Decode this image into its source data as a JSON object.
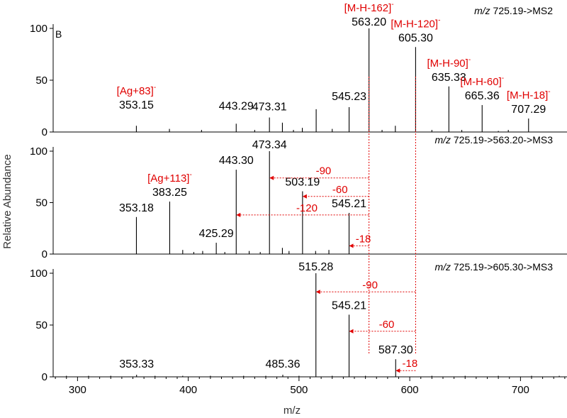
{
  "figure": {
    "panel_letter": "B",
    "ylabel": "Relative Abundance",
    "xlabel": "m/z",
    "xlim": [
      278,
      742
    ],
    "xticks": [
      300,
      400,
      500,
      600,
      700
    ],
    "yticks": [
      0,
      50,
      100
    ],
    "colors": {
      "peaks": "#000000",
      "annotation": "#e00000",
      "baseline": "#000000"
    }
  },
  "chart_data": [
    {
      "type": "bar",
      "title": "m/z 725.19->MS2",
      "title_italic": "m/z",
      "title_rest": " 725.19->MS2",
      "ylim": [
        0,
        100
      ],
      "peaks": [
        {
          "x": 353.15,
          "y": 6
        },
        {
          "x": 383.0,
          "y": 3
        },
        {
          "x": 412.0,
          "y": 2
        },
        {
          "x": 443.29,
          "y": 8
        },
        {
          "x": 473.31,
          "y": 14
        },
        {
          "x": 485.0,
          "y": 9
        },
        {
          "x": 503.0,
          "y": 4
        },
        {
          "x": 515.5,
          "y": 22
        },
        {
          "x": 530.0,
          "y": 3
        },
        {
          "x": 545.23,
          "y": 24
        },
        {
          "x": 563.2,
          "y": 100
        },
        {
          "x": 587.0,
          "y": 6
        },
        {
          "x": 605.3,
          "y": 82
        },
        {
          "x": 635.33,
          "y": 44
        },
        {
          "x": 647.0,
          "y": 2
        },
        {
          "x": 665.36,
          "y": 26
        },
        {
          "x": 689.0,
          "y": 2
        },
        {
          "x": 707.29,
          "y": 13
        },
        {
          "x": 460.0,
          "y": 2
        },
        {
          "x": 495.0,
          "y": 2
        },
        {
          "x": 575.0,
          "y": 2
        },
        {
          "x": 620.0,
          "y": 2
        },
        {
          "x": 680.0,
          "y": 1
        }
      ],
      "peak_labels": [
        {
          "x": 353.15,
          "text": "353.15"
        },
        {
          "x": 443.29,
          "text": "443.29"
        },
        {
          "x": 473.31,
          "text": "473.31"
        },
        {
          "x": 545.23,
          "text": "545.23"
        },
        {
          "x": 563.2,
          "text": "563.20"
        },
        {
          "x": 605.3,
          "text": "605.30"
        },
        {
          "x": 635.33,
          "text": "635.33"
        },
        {
          "x": 665.36,
          "text": "665.36"
        },
        {
          "x": 707.29,
          "text": "707.29"
        }
      ],
      "ion_labels": [
        {
          "x": 563.2,
          "main": "[M-H-162]",
          "sup": "-"
        },
        {
          "x": 605.3,
          "main": "[M-H-120]",
          "sup": "-"
        },
        {
          "x": 635.33,
          "main": "[M-H-90]",
          "sup": "-"
        },
        {
          "x": 665.36,
          "main": "[M-H-60]",
          "sup": "-"
        },
        {
          "x": 707.29,
          "main": "[M-H-18]",
          "sup": "-"
        },
        {
          "x": 353.15,
          "main": "[Ag+83]",
          "sup": "-"
        }
      ],
      "losses": []
    },
    {
      "type": "bar",
      "title": "m/z 725.19->563.20->MS3",
      "title_italic": "m/z",
      "title_rest": " 725.19->563.20->MS3",
      "ylim": [
        0,
        100
      ],
      "peaks": [
        {
          "x": 353.18,
          "y": 36
        },
        {
          "x": 383.25,
          "y": 51
        },
        {
          "x": 395.0,
          "y": 4
        },
        {
          "x": 413.0,
          "y": 3
        },
        {
          "x": 425.29,
          "y": 11
        },
        {
          "x": 443.3,
          "y": 82
        },
        {
          "x": 455.0,
          "y": 3
        },
        {
          "x": 473.34,
          "y": 100
        },
        {
          "x": 485.0,
          "y": 6
        },
        {
          "x": 503.19,
          "y": 61
        },
        {
          "x": 515.0,
          "y": 3
        },
        {
          "x": 527.0,
          "y": 4
        },
        {
          "x": 545.21,
          "y": 40
        },
        {
          "x": 433.0,
          "y": 2
        },
        {
          "x": 465.0,
          "y": 2
        },
        {
          "x": 405.0,
          "y": 2
        },
        {
          "x": 491.0,
          "y": 3
        }
      ],
      "peak_labels": [
        {
          "x": 353.18,
          "text": "353.18"
        },
        {
          "x": 383.25,
          "text": "383.25"
        },
        {
          "x": 425.29,
          "text": "425.29"
        },
        {
          "x": 443.3,
          "text": "443.30"
        },
        {
          "x": 473.34,
          "text": "473.34"
        },
        {
          "x": 503.19,
          "text": "503.19"
        },
        {
          "x": 545.21,
          "text": "545.21"
        }
      ],
      "ion_labels": [
        {
          "x": 383.25,
          "main": "[Ag+113]",
          "sup": "-"
        }
      ],
      "losses": [
        {
          "from": 563.2,
          "to": 473.34,
          "y": 74,
          "label": "-90"
        },
        {
          "from": 563.2,
          "to": 503.19,
          "y": 56,
          "label": "-60"
        },
        {
          "from": 563.2,
          "to": 443.3,
          "y": 38,
          "label": "-120"
        },
        {
          "from": 563.2,
          "to": 545.21,
          "y": 8,
          "label": "-18"
        }
      ]
    },
    {
      "type": "bar",
      "title": "m/z 725.19->605.30->MS3",
      "title_italic": "m/z",
      "title_rest": " 725.19->605.30->MS3",
      "ylim": [
        0,
        100
      ],
      "peaks": [
        {
          "x": 353.33,
          "y": 2
        },
        {
          "x": 485.36,
          "y": 2
        },
        {
          "x": 515.28,
          "y": 100
        },
        {
          "x": 545.21,
          "y": 60
        },
        {
          "x": 587.3,
          "y": 17
        },
        {
          "x": 290.0,
          "y": 1
        },
        {
          "x": 310.0,
          "y": 1
        },
        {
          "x": 330.0,
          "y": 1
        },
        {
          "x": 370.0,
          "y": 1
        },
        {
          "x": 395.0,
          "y": 1
        },
        {
          "x": 420.0,
          "y": 1
        },
        {
          "x": 450.0,
          "y": 1
        },
        {
          "x": 470.0,
          "y": 1
        },
        {
          "x": 500.0,
          "y": 1
        },
        {
          "x": 530.0,
          "y": 1
        },
        {
          "x": 560.0,
          "y": 1
        },
        {
          "x": 620.0,
          "y": 1
        },
        {
          "x": 650.0,
          "y": 1
        },
        {
          "x": 680.0,
          "y": 1
        },
        {
          "x": 710.0,
          "y": 1
        },
        {
          "x": 735.0,
          "y": 1
        }
      ],
      "peak_labels": [
        {
          "x": 353.33,
          "text": "353.33"
        },
        {
          "x": 485.36,
          "text": "485.36"
        },
        {
          "x": 515.28,
          "text": "515.28"
        },
        {
          "x": 545.21,
          "text": "545.21"
        },
        {
          "x": 587.3,
          "text": "587.30"
        }
      ],
      "ion_labels": [],
      "losses": [
        {
          "from": 605.3,
          "to": 515.28,
          "y": 82,
          "label": "-90"
        },
        {
          "from": 605.3,
          "to": 545.21,
          "y": 44,
          "label": "-60"
        },
        {
          "from": 605.3,
          "to": 587.3,
          "y": 6,
          "label": "-18"
        }
      ]
    }
  ]
}
